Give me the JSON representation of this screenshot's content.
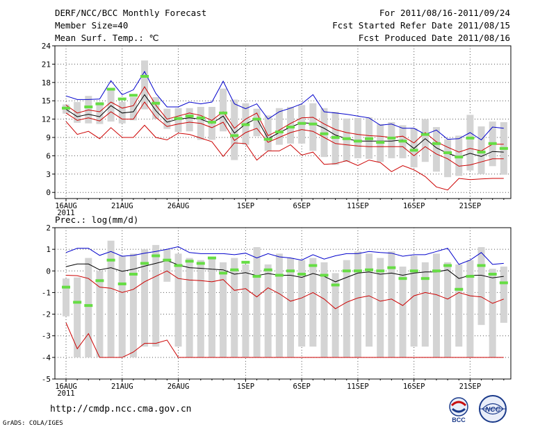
{
  "header": {
    "title": "DERF/NCC/BCC Monthly Forecast",
    "member_size": "Member Size=40",
    "variable": "Mean Surf. Temp.: ℃",
    "forecast_range": "For 2011/08/16-2011/09/24",
    "fcst_started": "Fcst Started Refer Date 2011/08/15",
    "fcst_produced": "Fcst Produced Date 2011/08/16"
  },
  "footer": {
    "url": "http://cmdp.ncc.cma.gov.cn",
    "grads": "GrADS: COLA/IGES",
    "logo_bcc": "BCC",
    "logo_ncc": "NCC"
  },
  "colors": {
    "grid": "#555555",
    "box": "#d4d4d4",
    "upper": "#0000cc",
    "lower": "#cc0000",
    "mean": "#000000",
    "observed": "#66dd44"
  },
  "chart_data": [
    {
      "type": "line",
      "title": "Mean Surf. Temp.: ℃",
      "x": [
        0,
        1,
        2,
        3,
        4,
        5,
        6,
        7,
        8,
        9,
        10,
        11,
        12,
        13,
        14,
        15,
        16,
        17,
        18,
        19,
        20,
        21,
        22,
        23,
        24,
        25,
        26,
        27,
        28,
        29,
        30,
        31,
        32,
        33,
        34,
        35,
        36,
        37,
        38,
        39
      ],
      "xticks": [
        {
          "label": "16AUG",
          "i": 0
        },
        {
          "label": "21AUG",
          "i": 5
        },
        {
          "label": "26AUG",
          "i": 10
        },
        {
          "label": "1SEP",
          "i": 16
        },
        {
          "label": "6SEP",
          "i": 21
        },
        {
          "label": "11SEP",
          "i": 26
        },
        {
          "label": "16SEP",
          "i": 31
        },
        {
          "label": "21SEP",
          "i": 36
        }
      ],
      "year_label": "2011",
      "ylim": [
        -1,
        24
      ],
      "yticks": [
        0,
        3,
        6,
        9,
        12,
        15,
        18,
        21,
        24
      ],
      "series": [
        {
          "name": "upper",
          "values": [
            15.8,
            15.2,
            15.2,
            15.3,
            18.3,
            16.0,
            16.8,
            19.8,
            16.2,
            14.0,
            14.0,
            14.8,
            14.5,
            14.8,
            18.2,
            14.5,
            13.7,
            14.5,
            12.0,
            13.2,
            13.8,
            14.5,
            16.0,
            13.2,
            13.0,
            12.8,
            12.5,
            12.2,
            11.0,
            11.2,
            10.5,
            10.5,
            9.5,
            10.2,
            8.7,
            8.8,
            9.8,
            8.6,
            10.7,
            10.5
          ]
        },
        {
          "name": "p75",
          "values": [
            14.3,
            13.0,
            13.5,
            13.2,
            14.8,
            13.8,
            14.2,
            17.3,
            14.3,
            12.0,
            12.5,
            13.0,
            12.6,
            11.8,
            13.2,
            10.5,
            12.0,
            13.0,
            9.3,
            10.2,
            11.3,
            12.2,
            12.3,
            11.2,
            10.3,
            9.8,
            9.5,
            9.3,
            9.2,
            9.0,
            9.2,
            8.1,
            9.8,
            8.3,
            7.4,
            6.6,
            7.2,
            6.8,
            7.9,
            7.9
          ]
        },
        {
          "name": "mean",
          "values": [
            13.6,
            12.4,
            12.8,
            12.4,
            14.2,
            13.0,
            13.2,
            16.0,
            13.4,
            11.5,
            12.0,
            12.2,
            12.0,
            11.3,
            12.5,
            9.7,
            11.2,
            12.1,
            8.8,
            9.8,
            10.7,
            11.4,
            11.3,
            10.5,
            9.4,
            8.8,
            8.4,
            8.4,
            8.4,
            8.4,
            8.6,
            7.2,
            8.8,
            7.3,
            6.4,
            5.8,
            6.4,
            5.9,
            6.7,
            6.6
          ]
        },
        {
          "name": "p25",
          "values": [
            13.0,
            11.8,
            12.2,
            11.7,
            13.2,
            12.0,
            12.0,
            14.8,
            12.3,
            10.8,
            11.2,
            11.5,
            11.3,
            10.6,
            11.5,
            8.5,
            9.8,
            10.5,
            8.2,
            9.0,
            9.8,
            10.3,
            10.0,
            9.0,
            8.0,
            7.8,
            7.6,
            7.5,
            7.5,
            7.5,
            7.5,
            6.0,
            7.5,
            6.3,
            5.5,
            4.3,
            4.5,
            5.0,
            5.5,
            5.5
          ]
        },
        {
          "name": "lower",
          "values": [
            11.6,
            9.5,
            10.0,
            8.8,
            10.6,
            9.0,
            9.0,
            11.0,
            9.0,
            8.6,
            9.7,
            9.5,
            8.9,
            8.3,
            5.9,
            8.1,
            8.0,
            5.3,
            6.8,
            6.8,
            7.8,
            6.1,
            6.6,
            4.6,
            4.7,
            5.2,
            4.4,
            5.3,
            4.9,
            3.4,
            4.4,
            3.7,
            2.6,
            0.9,
            0.4,
            2.3,
            2.1,
            2.2,
            2.3,
            2.3
          ]
        }
      ],
      "boxes": [
        {
          "lo": 12.9,
          "hi": 14.4
        },
        {
          "lo": 11.4,
          "hi": 14.8
        },
        {
          "lo": 11.3,
          "hi": 15.8
        },
        {
          "lo": 11.2,
          "hi": 14.8
        },
        {
          "lo": 11.6,
          "hi": 17.1
        },
        {
          "lo": 11.3,
          "hi": 14.8
        },
        {
          "lo": 11.8,
          "hi": 15.6
        },
        {
          "lo": 13.6,
          "hi": 21.6
        },
        {
          "lo": 12.0,
          "hi": 15.6
        },
        {
          "lo": 10.4,
          "hi": 13.7
        },
        {
          "lo": 9.9,
          "hi": 13.8
        },
        {
          "lo": 10.0,
          "hi": 13.8
        },
        {
          "lo": 8.6,
          "hi": 14.0
        },
        {
          "lo": 8.6,
          "hi": 14.0
        },
        {
          "lo": 10.0,
          "hi": 17.0
        },
        {
          "lo": 5.3,
          "hi": 15.2
        },
        {
          "lo": 7.8,
          "hi": 14.6
        },
        {
          "lo": 9.2,
          "hi": 13.7
        },
        {
          "lo": 6.8,
          "hi": 12.6
        },
        {
          "lo": 7.8,
          "hi": 13.8
        },
        {
          "lo": 8.0,
          "hi": 14.0
        },
        {
          "lo": 8.0,
          "hi": 14.3
        },
        {
          "lo": 6.8,
          "hi": 14.6
        },
        {
          "lo": 5.8,
          "hi": 13.8
        },
        {
          "lo": 4.5,
          "hi": 13.2
        },
        {
          "lo": 5.0,
          "hi": 12.1
        },
        {
          "lo": 5.6,
          "hi": 12.2
        },
        {
          "lo": 5.5,
          "hi": 12.3
        },
        {
          "lo": 5.0,
          "hi": 11.2
        },
        {
          "lo": 5.6,
          "hi": 11.5
        },
        {
          "lo": 5.6,
          "hi": 11.0
        },
        {
          "lo": 4.1,
          "hi": 10.5
        },
        {
          "lo": 5.0,
          "hi": 12.0
        },
        {
          "lo": 3.4,
          "hi": 10.7
        },
        {
          "lo": 2.5,
          "hi": 8.7
        },
        {
          "lo": 2.7,
          "hi": 9.3
        },
        {
          "lo": 3.6,
          "hi": 12.7
        },
        {
          "lo": 3.0,
          "hi": 10.8
        },
        {
          "lo": 4.3,
          "hi": 11.6
        },
        {
          "lo": 2.9,
          "hi": 11.5
        }
      ],
      "observed": [
        13.8,
        null,
        14.0,
        14.5,
        16.9,
        15.3,
        15.9,
        19.0,
        14.6,
        null,
        12.1,
        12.5,
        12.2,
        11.5,
        13.0,
        9.3,
        11.1,
        12.0,
        8.7,
        9.9,
        10.7,
        11.3,
        11.2,
        9.6,
        9.0,
        8.8,
        8.4,
        8.8,
        8.2,
        8.9,
        8.4,
        6.9,
        9.5,
        8.0,
        6.5,
        5.8,
        8.9,
        6.6,
        8.0,
        7.2
      ]
    },
    {
      "type": "line",
      "title": "Prec.: log(mm/d)",
      "x": [
        0,
        1,
        2,
        3,
        4,
        5,
        6,
        7,
        8,
        9,
        10,
        11,
        12,
        13,
        14,
        15,
        16,
        17,
        18,
        19,
        20,
        21,
        22,
        23,
        24,
        25,
        26,
        27,
        28,
        29,
        30,
        31,
        32,
        33,
        34,
        35,
        36,
        37,
        38,
        39
      ],
      "xticks": [
        {
          "label": "16AUG",
          "i": 0
        },
        {
          "label": "21AUG",
          "i": 5
        },
        {
          "label": "26AUG",
          "i": 10
        },
        {
          "label": "1SEP",
          "i": 16
        },
        {
          "label": "6SEP",
          "i": 21
        },
        {
          "label": "11SEP",
          "i": 26
        },
        {
          "label": "16SEP",
          "i": 31
        },
        {
          "label": "21SEP",
          "i": 36
        }
      ],
      "year_label": "2011",
      "ylim": [
        -5,
        2
      ],
      "yticks": [
        -5,
        -4,
        -3,
        -2,
        -1,
        0,
        1,
        2
      ],
      "series": [
        {
          "name": "upper",
          "values": [
            0.85,
            1.05,
            1.05,
            0.72,
            0.9,
            0.68,
            0.72,
            0.82,
            0.9,
            1.0,
            1.12,
            0.85,
            0.8,
            0.8,
            0.8,
            0.75,
            0.82,
            0.6,
            0.8,
            0.65,
            0.6,
            0.5,
            0.75,
            0.55,
            0.7,
            0.8,
            0.8,
            0.9,
            0.85,
            0.82,
            0.68,
            0.75,
            0.75,
            0.9,
            1.05,
            0.3,
            0.5,
            0.85,
            0.3,
            0.35
          ]
        },
        {
          "name": "mean",
          "values": [
            0.2,
            0.32,
            0.32,
            0.05,
            0.15,
            -0.02,
            0.08,
            0.22,
            0.35,
            0.48,
            0.28,
            0.15,
            0.12,
            0.08,
            0.05,
            -0.15,
            -0.08,
            -0.22,
            -0.12,
            -0.2,
            -0.2,
            -0.3,
            -0.12,
            -0.25,
            -0.5,
            -0.3,
            -0.1,
            -0.05,
            -0.15,
            -0.1,
            -0.2,
            -0.1,
            -0.05,
            -0.05,
            0.05,
            -0.35,
            -0.2,
            -0.2,
            -0.32,
            -0.25
          ]
        },
        {
          "name": "lower",
          "values": [
            -0.2,
            -0.22,
            -0.35,
            -0.75,
            -0.8,
            -1.0,
            -0.85,
            -0.5,
            -0.25,
            0.0,
            -0.35,
            -0.42,
            -0.45,
            -0.5,
            -0.4,
            -0.9,
            -0.82,
            -1.2,
            -0.78,
            -1.05,
            -1.4,
            -1.25,
            -1.0,
            -1.3,
            -1.75,
            -1.45,
            -1.25,
            -1.15,
            -1.4,
            -1.3,
            -1.6,
            -1.15,
            -1.0,
            -1.1,
            -1.3,
            -1.0,
            -1.15,
            -1.2,
            -1.5,
            -1.3
          ]
        },
        {
          "name": "min_line",
          "values": [
            -2.4,
            -3.6,
            -2.9,
            -4.0,
            -4.0,
            -4.0,
            -3.75,
            -3.35,
            -3.35,
            -3.2,
            -4.0,
            -4.0,
            -4.0,
            -4.0,
            -4.0,
            -4.0,
            -4.0,
            -4.0,
            -4.0,
            -4.0,
            -4.0,
            -4.0,
            -4.0,
            -4.0,
            -4.0,
            -4.0,
            -4.0,
            -4.0,
            -4.0,
            -4.0,
            -4.0,
            -4.0,
            -4.0,
            -4.0,
            -4.0,
            -4.0,
            -4.0,
            -4.0,
            -4.0,
            -4.0
          ]
        }
      ],
      "boxes": [
        {
          "lo": -2.1,
          "hi": -0.35
        },
        {
          "lo": -4.0,
          "hi": -0.3
        },
        {
          "lo": -4.0,
          "hi": 0.6
        },
        {
          "lo": -4.0,
          "hi": 0.0
        },
        {
          "lo": -4.0,
          "hi": 1.4
        },
        {
          "lo": -4.0,
          "hi": 0.7
        },
        {
          "lo": -4.0,
          "hi": 0.8
        },
        {
          "lo": -3.5,
          "hi": 1.0
        },
        {
          "lo": -3.5,
          "hi": 1.2
        },
        {
          "lo": -0.5,
          "hi": 1.0
        },
        {
          "lo": -3.5,
          "hi": 0.8
        },
        {
          "lo": -4.0,
          "hi": 0.6
        },
        {
          "lo": -4.0,
          "hi": 0.5
        },
        {
          "lo": -4.0,
          "hi": 0.6
        },
        {
          "lo": -4.0,
          "hi": 0.4
        },
        {
          "lo": -4.0,
          "hi": 0.6
        },
        {
          "lo": -4.0,
          "hi": 0.3
        },
        {
          "lo": -4.0,
          "hi": 1.1
        },
        {
          "lo": -4.0,
          "hi": 0.3
        },
        {
          "lo": -4.0,
          "hi": 0.8
        },
        {
          "lo": -4.0,
          "hi": 0.6
        },
        {
          "lo": -3.5,
          "hi": 0.5
        },
        {
          "lo": -3.5,
          "hi": 0.6
        },
        {
          "lo": -4.0,
          "hi": 0.4
        },
        {
          "lo": -4.0,
          "hi": -0.1
        },
        {
          "lo": -4.0,
          "hi": 0.5
        },
        {
          "lo": -4.0,
          "hi": 0.9
        },
        {
          "lo": -3.5,
          "hi": 0.8
        },
        {
          "lo": -4.0,
          "hi": 0.6
        },
        {
          "lo": -4.0,
          "hi": 0.9
        },
        {
          "lo": -4.0,
          "hi": 0.2
        },
        {
          "lo": -3.5,
          "hi": 0.7
        },
        {
          "lo": -3.5,
          "hi": 0.4
        },
        {
          "lo": -4.0,
          "hi": 0.8
        },
        {
          "lo": -4.0,
          "hi": 0.4
        },
        {
          "lo": -3.5,
          "hi": 0.3
        },
        {
          "lo": -4.0,
          "hi": 0.5
        },
        {
          "lo": -2.5,
          "hi": 1.1
        },
        {
          "lo": -4.0,
          "hi": 0.1
        },
        {
          "lo": -2.4,
          "hi": 0.2
        }
      ],
      "observed": [
        -0.75,
        -1.45,
        -1.6,
        -0.45,
        0.5,
        -0.6,
        -0.15,
        0.35,
        0.7,
        0.5,
        0.25,
        0.45,
        0.35,
        0.6,
        -0.1,
        0.05,
        0.4,
        -0.25,
        0.05,
        -0.2,
        0.0,
        -0.15,
        0.25,
        -0.2,
        -0.65,
        0.0,
        0.0,
        0.05,
        0.0,
        0.15,
        -0.35,
        0.0,
        -0.35,
        0.0,
        0.25,
        -0.85,
        -0.25,
        0.25,
        -0.15,
        -0.55
      ]
    }
  ]
}
